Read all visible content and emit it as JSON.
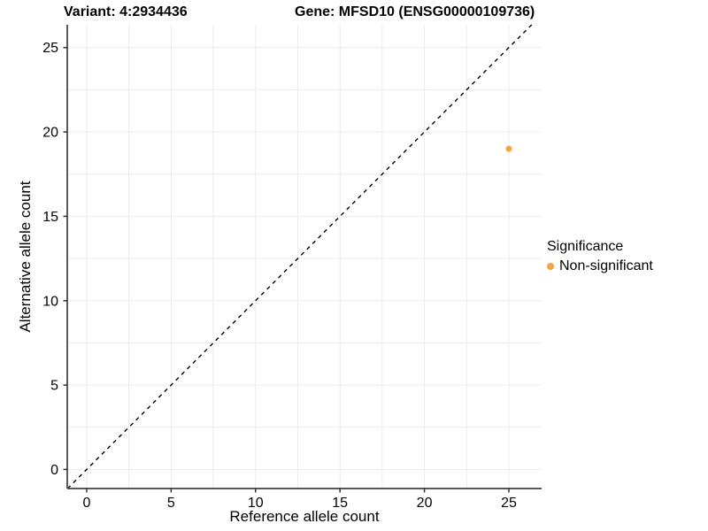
{
  "chart_data": {
    "type": "scatter",
    "titles": [
      "Variant: 4:2934436",
      "Gene: MFSD10 (ENSG00000109736)"
    ],
    "xlabel": "Reference allele count",
    "ylabel": "Alternative allele count",
    "xlim": [
      -1.15,
      26.94
    ],
    "ylim": [
      -1.13,
      26.35
    ],
    "x_ticks": [
      0,
      5,
      10,
      15,
      20,
      25
    ],
    "y_ticks": [
      0,
      5,
      10,
      15,
      20,
      25
    ],
    "grid_interval": 2.5,
    "grid_on": true,
    "grid_color": "#ececec",
    "axis_line_color": "#595959",
    "tick_color": "#333333",
    "tick_label_color": "#000000",
    "identity_line": {
      "style": "dashed",
      "color": "#000000"
    },
    "points": [
      {
        "x": 25,
        "y": 19,
        "series": "Non-significant",
        "color": "#F9A242",
        "radius": 3.5
      }
    ],
    "legend": {
      "title": "Significance",
      "position": "right",
      "entries": [
        {
          "label": "Non-significant",
          "color": "#F9A242"
        }
      ]
    }
  }
}
